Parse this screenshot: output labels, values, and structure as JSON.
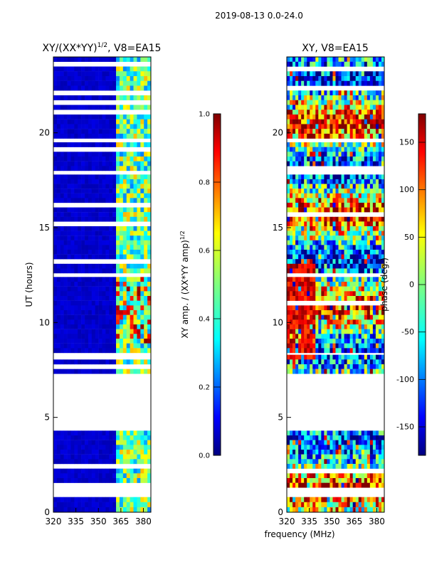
{
  "suptitle": "2019-08-13 0.0-24.0",
  "chart_data": [
    {
      "type": "heatmap",
      "title_main": "XY/(XX*YY)",
      "title_exp": "1/2",
      "title_tail": ", V8=EA15",
      "xlabel": "",
      "ylabel": "UT (hours)",
      "xlim": [
        320,
        385
      ],
      "ylim": [
        0,
        24
      ],
      "xticks": [
        "320",
        "335",
        "350",
        "365",
        "380"
      ],
      "yticks": [
        "0",
        "5",
        "10",
        "15",
        "20"
      ],
      "colorbar": {
        "label_main": "XY amp. / (XX*YY amp)",
        "label_exp": "1/2",
        "range": [
          0.0,
          1.0
        ],
        "ticks": [
          "0.0",
          "0.2",
          "0.4",
          "0.6",
          "0.8",
          "1.0"
        ]
      }
    },
    {
      "type": "heatmap",
      "title": "XY, V8=EA15",
      "xlabel": "frequency (MHz)",
      "ylabel": "",
      "xlim": [
        320,
        385
      ],
      "ylim": [
        0,
        24
      ],
      "xticks": [
        "320",
        "335",
        "350",
        "365",
        "380"
      ],
      "yticks": [
        "0",
        "5",
        "10",
        "15",
        "20"
      ],
      "colorbar": {
        "label": "phase (deg.)",
        "range": [
          -180,
          180
        ],
        "ticks": [
          "-150",
          "-100",
          "-50",
          "0",
          "50",
          "100",
          "150"
        ]
      }
    }
  ],
  "data_bands_hours": [
    [
      0.0,
      0.8
    ],
    [
      1.3,
      4.3
    ],
    [
      7.3,
      8.3
    ],
    [
      8.4,
      12.4
    ],
    [
      12.6,
      17.8
    ],
    [
      18.0,
      19.5
    ],
    [
      19.7,
      24.0
    ]
  ],
  "colors": {
    "jet": [
      "#00007f",
      "#0000ff",
      "#007fff",
      "#00ffff",
      "#7fff7f",
      "#ffff00",
      "#ff7f00",
      "#ff0000",
      "#7f0000"
    ]
  }
}
